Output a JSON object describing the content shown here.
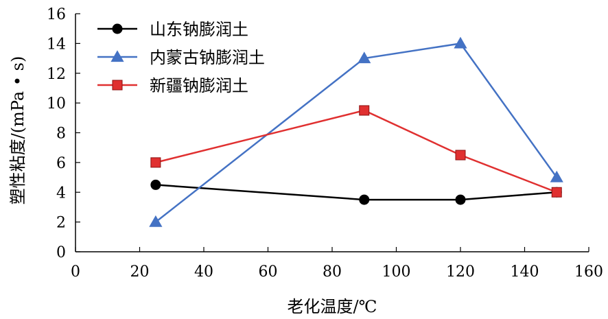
{
  "chart_data": {
    "type": "line",
    "xlabel": "老化温度/℃",
    "ylabel": "塑性粘度/(mPa • s)",
    "xlim": [
      0,
      160
    ],
    "ylim": [
      0,
      16
    ],
    "xticks": [
      0,
      20,
      40,
      60,
      80,
      100,
      120,
      140,
      160
    ],
    "yticks": [
      0,
      2,
      4,
      6,
      8,
      10,
      12,
      14,
      16
    ],
    "x": [
      25,
      90,
      120,
      150
    ],
    "grid": false,
    "legend_position": "top-left",
    "series": [
      {
        "name": "山东钠膨润土",
        "marker": "circle",
        "color": "#000000",
        "values": [
          4.5,
          3.5,
          3.5,
          4.0
        ]
      },
      {
        "name": "内蒙古钠膨润土",
        "marker": "triangle",
        "color": "#4472C4",
        "values": [
          2.0,
          13.0,
          14.0,
          5.0
        ]
      },
      {
        "name": "新疆钠膨润土",
        "marker": "square",
        "color": "#E03030",
        "values": [
          6.0,
          9.5,
          6.5,
          4.0
        ]
      }
    ]
  }
}
